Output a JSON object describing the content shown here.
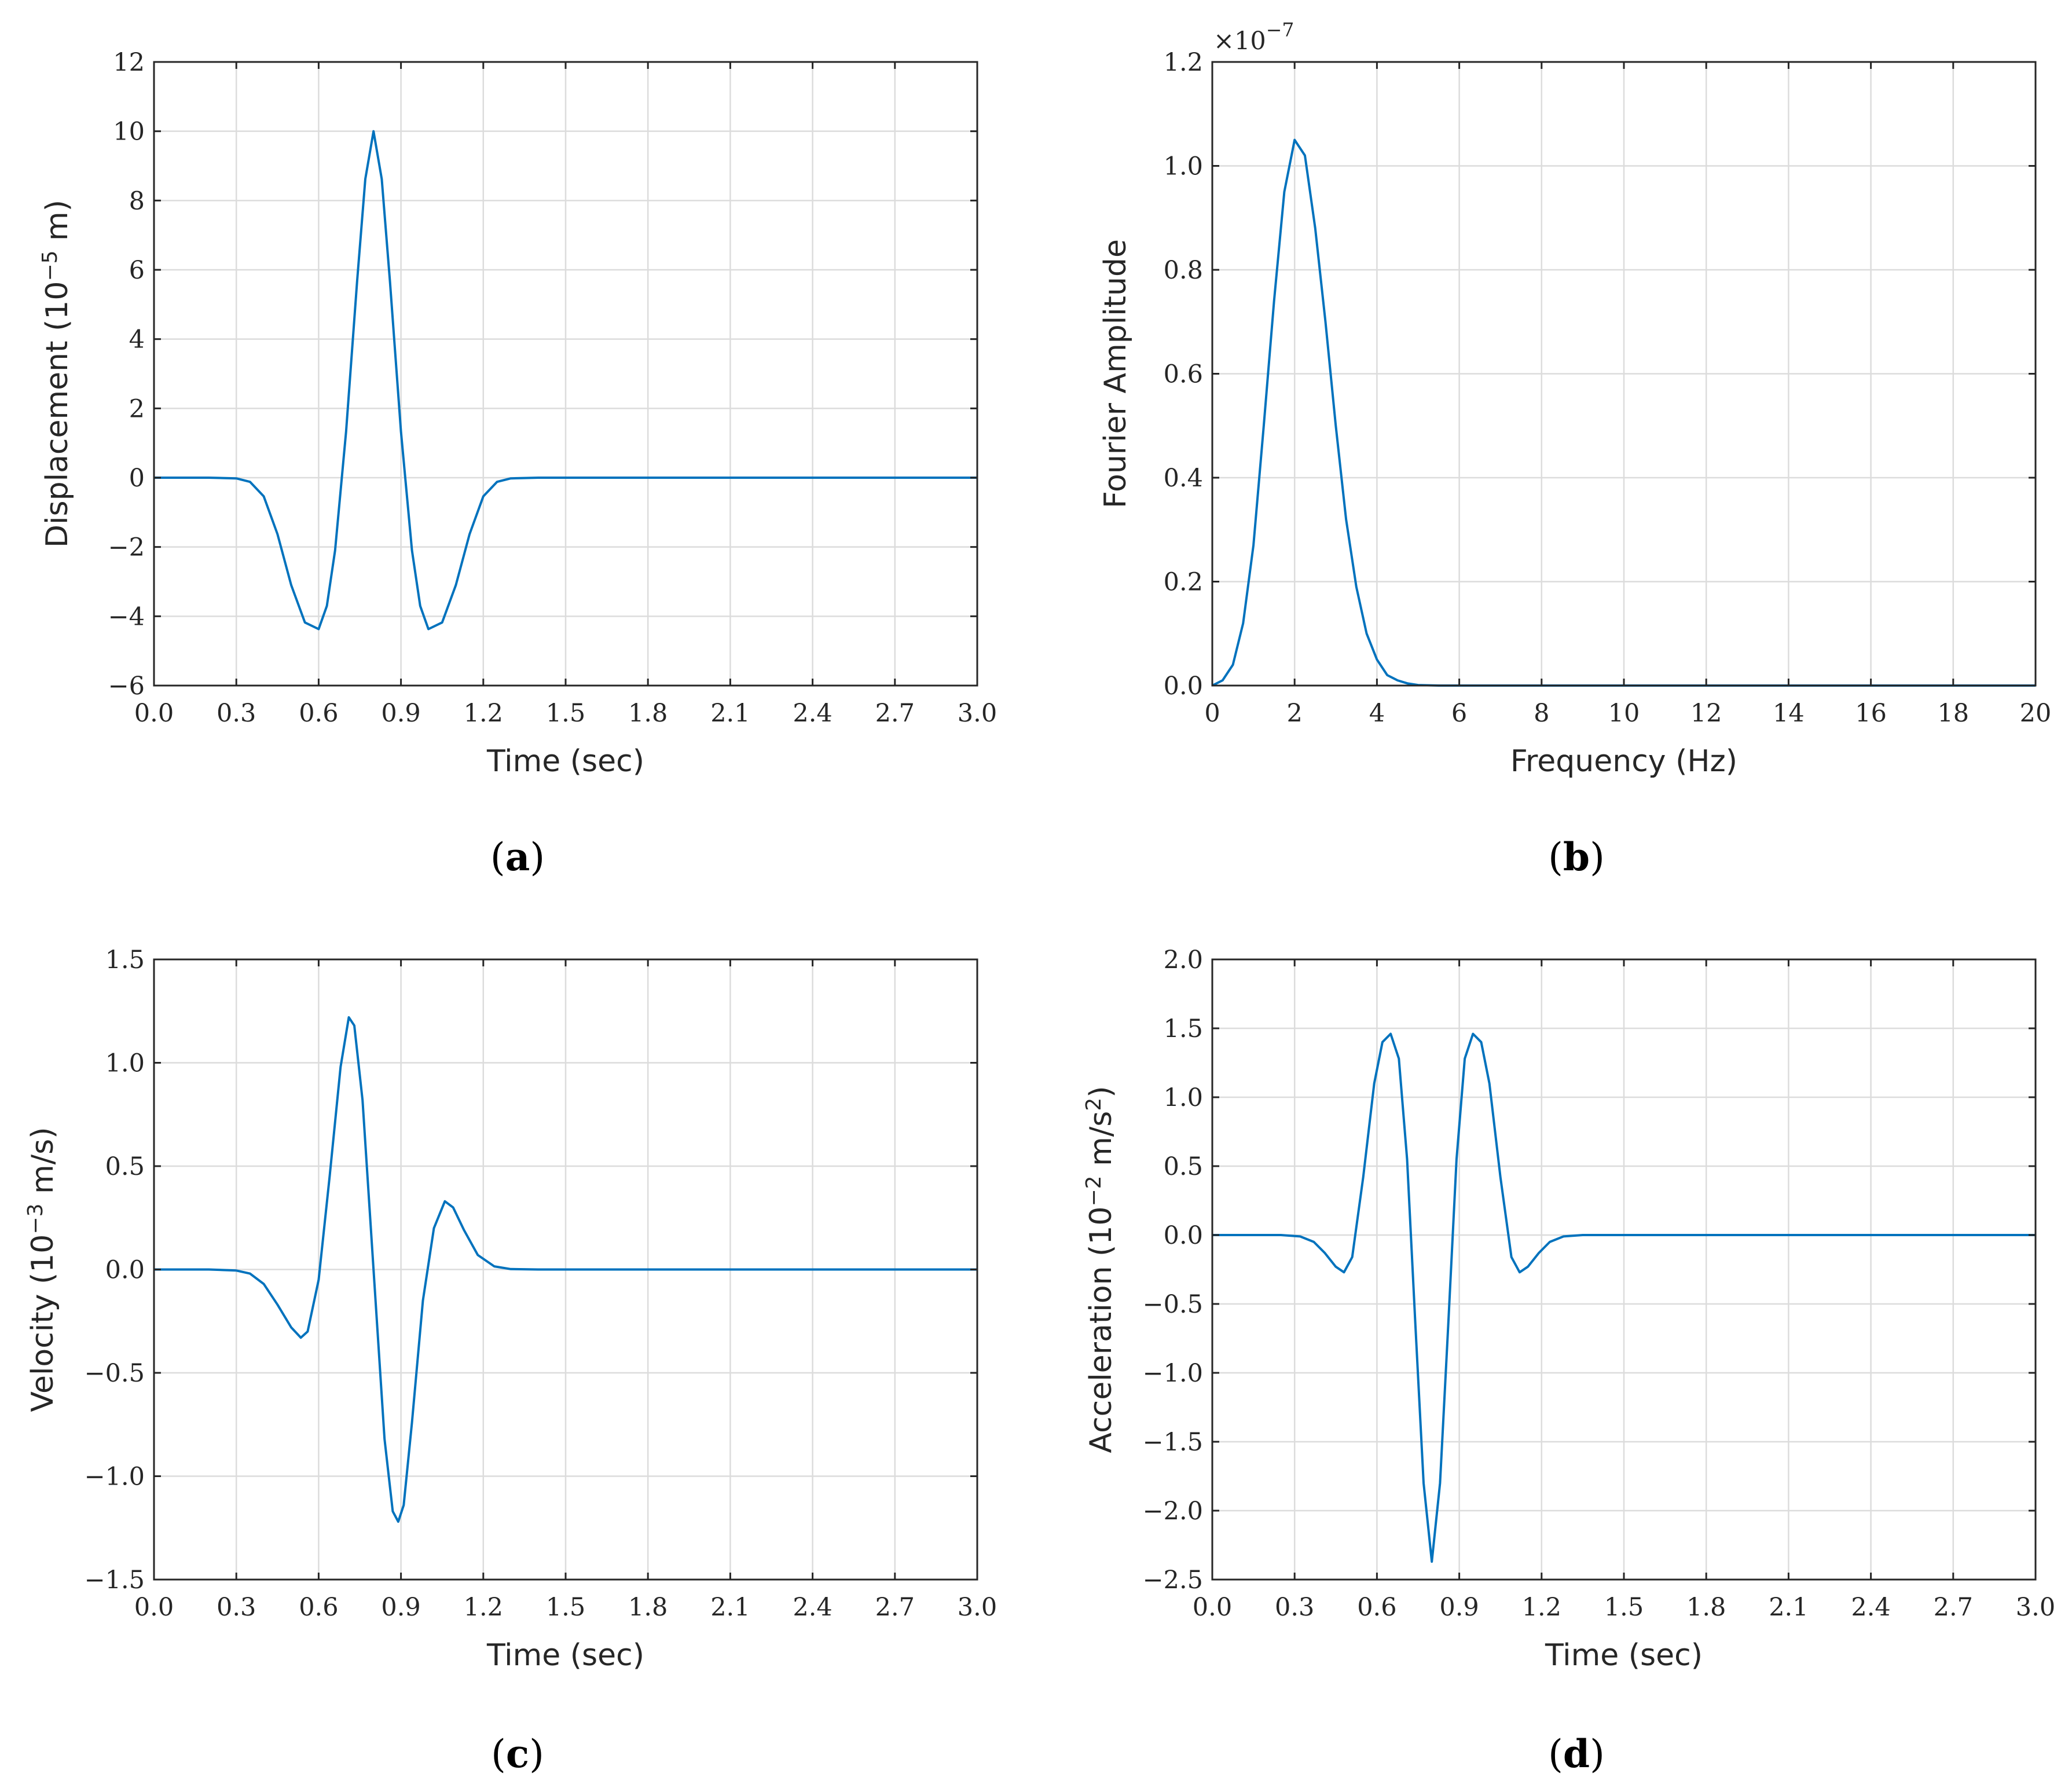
{
  "colors": {
    "series": "#0072BD",
    "frame": "#262626",
    "grid": "#dcdcdc"
  },
  "chart_data": [
    {
      "id": "a",
      "caption_letter": "a",
      "type": "line",
      "xlabel": "Time (sec)",
      "ylabel_base": "Displacement (10",
      "ylabel_sup": "−5",
      "ylabel_tail": " m)",
      "xlim": [
        0,
        3
      ],
      "ylim": [
        -6,
        12
      ],
      "xticks": [
        0,
        0.3,
        0.6,
        0.9,
        1.2,
        1.5,
        1.8,
        2.1,
        2.4,
        2.7,
        3.0
      ],
      "xtick_labels": [
        "0.0",
        "0.3",
        "0.6",
        "0.9",
        "1.2",
        "1.5",
        "1.8",
        "2.1",
        "2.4",
        "2.7",
        "3.0"
      ],
      "yticks": [
        -6,
        -4,
        -2,
        0,
        2,
        4,
        6,
        8,
        10,
        12
      ],
      "ytick_labels": [
        "−6",
        "−4",
        "−2",
        "0",
        "2",
        "4",
        "6",
        "8",
        "10",
        "12"
      ],
      "grid": true,
      "series": [
        {
          "name": "displacement",
          "x": [
            0,
            0.2,
            0.3,
            0.35,
            0.4,
            0.45,
            0.5,
            0.55,
            0.6,
            0.63,
            0.66,
            0.7,
            0.74,
            0.77,
            0.8,
            0.83,
            0.86,
            0.9,
            0.94,
            0.97,
            1.0,
            1.05,
            1.1,
            1.15,
            1.2,
            1.25,
            1.3,
            1.4,
            3.0
          ],
          "y": [
            0,
            0,
            -0.02,
            -0.12,
            -0.54,
            -1.63,
            -3.1,
            -4.18,
            -4.37,
            -3.7,
            -2.1,
            1.33,
            5.66,
            8.62,
            10.0,
            8.62,
            5.66,
            1.33,
            -2.1,
            -3.7,
            -4.37,
            -4.18,
            -3.1,
            -1.63,
            -0.54,
            -0.12,
            -0.02,
            0,
            0
          ]
        }
      ]
    },
    {
      "id": "b",
      "caption_letter": "b",
      "type": "line",
      "xlabel": "Frequency (Hz)",
      "ylabel_base": "Fourier Amplitude",
      "ylabel_sup": "",
      "ylabel_tail": "",
      "multiplier_base": "×10",
      "multiplier_sup": "−7",
      "xlim": [
        0,
        20
      ],
      "ylim": [
        0,
        1.2
      ],
      "xticks": [
        0,
        2,
        4,
        6,
        8,
        10,
        12,
        14,
        16,
        18,
        20
      ],
      "xtick_labels": [
        "0",
        "2",
        "4",
        "6",
        "8",
        "10",
        "12",
        "14",
        "16",
        "18",
        "20"
      ],
      "yticks": [
        0,
        0.2,
        0.4,
        0.6,
        0.8,
        1.0,
        1.2
      ],
      "ytick_labels": [
        "0.0",
        "0.2",
        "0.4",
        "0.6",
        "0.8",
        "1.0",
        "1.2"
      ],
      "grid": true,
      "series": [
        {
          "name": "fourier-amplitude",
          "x": [
            0,
            0.25,
            0.5,
            0.75,
            1.0,
            1.25,
            1.5,
            1.75,
            2.0,
            2.25,
            2.5,
            2.75,
            3.0,
            3.25,
            3.5,
            3.75,
            4.0,
            4.25,
            4.5,
            4.75,
            5.0,
            5.5,
            6.0,
            20.0
          ],
          "y": [
            0,
            0.01,
            0.04,
            0.12,
            0.27,
            0.5,
            0.74,
            0.95,
            1.05,
            1.02,
            0.88,
            0.7,
            0.5,
            0.32,
            0.19,
            0.1,
            0.05,
            0.02,
            0.01,
            0.004,
            0.001,
            0,
            0,
            0
          ]
        }
      ]
    },
    {
      "id": "c",
      "caption_letter": "c",
      "type": "line",
      "xlabel": "Time (sec)",
      "ylabel_base": "Velocity (10",
      "ylabel_sup": "−3",
      "ylabel_tail": " m/s)",
      "xlim": [
        0,
        3
      ],
      "ylim": [
        -1.5,
        1.5
      ],
      "xticks": [
        0,
        0.3,
        0.6,
        0.9,
        1.2,
        1.5,
        1.8,
        2.1,
        2.4,
        2.7,
        3.0
      ],
      "xtick_labels": [
        "0.0",
        "0.3",
        "0.6",
        "0.9",
        "1.2",
        "1.5",
        "1.8",
        "2.1",
        "2.4",
        "2.7",
        "3.0"
      ],
      "yticks": [
        -1.5,
        -1.0,
        -0.5,
        0,
        0.5,
        1.0,
        1.5
      ],
      "ytick_labels": [
        "−1.5",
        "−1.0",
        "−0.5",
        "0.0",
        "0.5",
        "1.0",
        "1.5"
      ],
      "grid": true,
      "series": [
        {
          "name": "velocity",
          "x": [
            0,
            0.2,
            0.3,
            0.35,
            0.4,
            0.45,
            0.5,
            0.535,
            0.56,
            0.6,
            0.64,
            0.68,
            0.71,
            0.73,
            0.76,
            0.8,
            0.84,
            0.87,
            0.89,
            0.91,
            0.94,
            0.98,
            1.02,
            1.06,
            1.09,
            1.13,
            1.18,
            1.24,
            1.3,
            1.4,
            3.0
          ],
          "y": [
            0,
            0,
            -0.005,
            -0.02,
            -0.07,
            -0.17,
            -0.28,
            -0.33,
            -0.3,
            -0.05,
            0.45,
            0.98,
            1.22,
            1.18,
            0.82,
            0.0,
            -0.82,
            -1.17,
            -1.22,
            -1.14,
            -0.74,
            -0.15,
            0.2,
            0.33,
            0.3,
            0.19,
            0.07,
            0.015,
            0.002,
            0,
            0
          ]
        }
      ]
    },
    {
      "id": "d",
      "caption_letter": "d",
      "type": "line",
      "xlabel": "Time (sec)",
      "ylabel_base": "Acceleration (10",
      "ylabel_sup": "−2",
      "ylabel_tail": " m/s",
      "ylabel_sup2": "2",
      "ylabel_end": ")",
      "xlim": [
        0,
        3
      ],
      "ylim": [
        -2.5,
        2.0
      ],
      "xticks": [
        0,
        0.3,
        0.6,
        0.9,
        1.2,
        1.5,
        1.8,
        2.1,
        2.4,
        2.7,
        3.0
      ],
      "xtick_labels": [
        "0.0",
        "0.3",
        "0.6",
        "0.9",
        "1.2",
        "1.5",
        "1.8",
        "2.1",
        "2.4",
        "2.7",
        "3.0"
      ],
      "yticks": [
        -2.5,
        -2.0,
        -1.5,
        -1.0,
        -0.5,
        0,
        0.5,
        1.0,
        1.5,
        2.0
      ],
      "ytick_labels": [
        "−2.5",
        "−2.0",
        "−1.5",
        "−1.0",
        "−0.5",
        "0.0",
        "0.5",
        "1.0",
        "1.5",
        "2.0"
      ],
      "grid": true,
      "series": [
        {
          "name": "acceleration",
          "x": [
            0,
            0.25,
            0.32,
            0.37,
            0.41,
            0.45,
            0.48,
            0.51,
            0.55,
            0.59,
            0.62,
            0.65,
            0.68,
            0.71,
            0.74,
            0.77,
            0.8,
            0.83,
            0.86,
            0.89,
            0.92,
            0.95,
            0.98,
            1.01,
            1.05,
            1.09,
            1.12,
            1.15,
            1.19,
            1.23,
            1.28,
            1.35,
            1.45,
            3.0
          ],
          "y": [
            0,
            0,
            -0.01,
            -0.05,
            -0.13,
            -0.23,
            -0.27,
            -0.16,
            0.42,
            1.1,
            1.4,
            1.46,
            1.28,
            0.55,
            -0.65,
            -1.8,
            -2.37,
            -1.8,
            -0.65,
            0.55,
            1.28,
            1.46,
            1.4,
            1.1,
            0.42,
            -0.16,
            -0.27,
            -0.23,
            -0.13,
            -0.05,
            -0.01,
            0,
            0,
            0
          ]
        }
      ]
    }
  ]
}
